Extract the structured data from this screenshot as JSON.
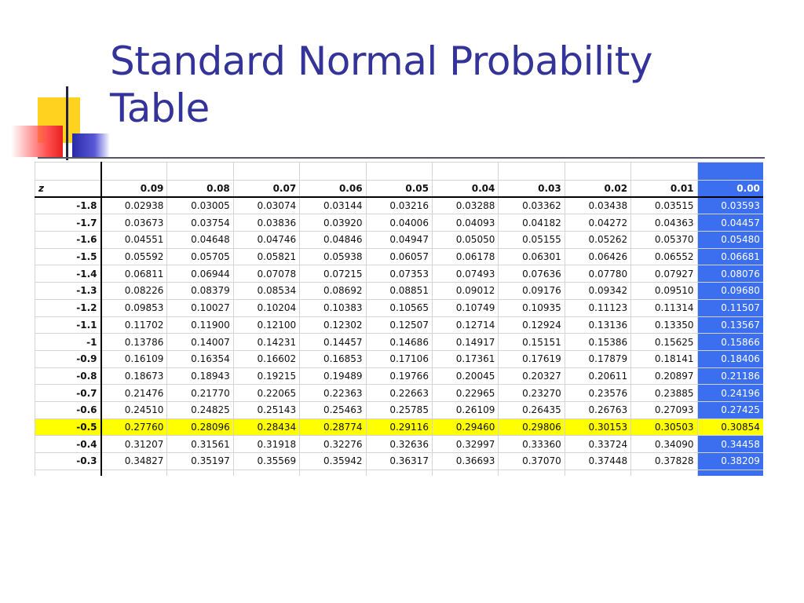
{
  "title_line1": "Standard Normal Probability",
  "title_line2": "Table",
  "table": {
    "z_header": "z",
    "columns": [
      "0.09",
      "0.08",
      "0.07",
      "0.06",
      "0.05",
      "0.04",
      "0.03",
      "0.02",
      "0.01",
      "0.00"
    ],
    "highlighted_column": "0.00",
    "highlighted_row": "-0.5",
    "rows": [
      {
        "z": "-1.8",
        "values": [
          "0.02938",
          "0.03005",
          "0.03074",
          "0.03144",
          "0.03216",
          "0.03288",
          "0.03362",
          "0.03438",
          "0.03515",
          "0.03593"
        ]
      },
      {
        "z": "-1.7",
        "values": [
          "0.03673",
          "0.03754",
          "0.03836",
          "0.03920",
          "0.04006",
          "0.04093",
          "0.04182",
          "0.04272",
          "0.04363",
          "0.04457"
        ]
      },
      {
        "z": "-1.6",
        "values": [
          "0.04551",
          "0.04648",
          "0.04746",
          "0.04846",
          "0.04947",
          "0.05050",
          "0.05155",
          "0.05262",
          "0.05370",
          "0.05480"
        ]
      },
      {
        "z": "-1.5",
        "values": [
          "0.05592",
          "0.05705",
          "0.05821",
          "0.05938",
          "0.06057",
          "0.06178",
          "0.06301",
          "0.06426",
          "0.06552",
          "0.06681"
        ]
      },
      {
        "z": "-1.4",
        "values": [
          "0.06811",
          "0.06944",
          "0.07078",
          "0.07215",
          "0.07353",
          "0.07493",
          "0.07636",
          "0.07780",
          "0.07927",
          "0.08076"
        ]
      },
      {
        "z": "-1.3",
        "values": [
          "0.08226",
          "0.08379",
          "0.08534",
          "0.08692",
          "0.08851",
          "0.09012",
          "0.09176",
          "0.09342",
          "0.09510",
          "0.09680"
        ]
      },
      {
        "z": "-1.2",
        "values": [
          "0.09853",
          "0.10027",
          "0.10204",
          "0.10383",
          "0.10565",
          "0.10749",
          "0.10935",
          "0.11123",
          "0.11314",
          "0.11507"
        ]
      },
      {
        "z": "-1.1",
        "values": [
          "0.11702",
          "0.11900",
          "0.12100",
          "0.12302",
          "0.12507",
          "0.12714",
          "0.12924",
          "0.13136",
          "0.13350",
          "0.13567"
        ]
      },
      {
        "z": "-1",
        "values": [
          "0.13786",
          "0.14007",
          "0.14231",
          "0.14457",
          "0.14686",
          "0.14917",
          "0.15151",
          "0.15386",
          "0.15625",
          "0.15866"
        ]
      },
      {
        "z": "-0.9",
        "values": [
          "0.16109",
          "0.16354",
          "0.16602",
          "0.16853",
          "0.17106",
          "0.17361",
          "0.17619",
          "0.17879",
          "0.18141",
          "0.18406"
        ]
      },
      {
        "z": "-0.8",
        "values": [
          "0.18673",
          "0.18943",
          "0.19215",
          "0.19489",
          "0.19766",
          "0.20045",
          "0.20327",
          "0.20611",
          "0.20897",
          "0.21186"
        ]
      },
      {
        "z": "-0.7",
        "values": [
          "0.21476",
          "0.21770",
          "0.22065",
          "0.22363",
          "0.22663",
          "0.22965",
          "0.23270",
          "0.23576",
          "0.23885",
          "0.24196"
        ]
      },
      {
        "z": "-0.6",
        "values": [
          "0.24510",
          "0.24825",
          "0.25143",
          "0.25463",
          "0.25785",
          "0.26109",
          "0.26435",
          "0.26763",
          "0.27093",
          "0.27425"
        ]
      },
      {
        "z": "-0.5",
        "values": [
          "0.27760",
          "0.28096",
          "0.28434",
          "0.28774",
          "0.29116",
          "0.29460",
          "0.29806",
          "0.30153",
          "0.30503",
          "0.30854"
        ]
      },
      {
        "z": "-0.4",
        "values": [
          "0.31207",
          "0.31561",
          "0.31918",
          "0.32276",
          "0.32636",
          "0.32997",
          "0.33360",
          "0.33724",
          "0.34090",
          "0.34458"
        ]
      },
      {
        "z": "-0.3",
        "values": [
          "0.34827",
          "0.35197",
          "0.35569",
          "0.35942",
          "0.36317",
          "0.36693",
          "0.37070",
          "0.37448",
          "0.37828",
          "0.38209"
        ]
      }
    ]
  },
  "colors": {
    "title": "#333399",
    "highlight_column": "#3b6ff0",
    "highlight_row": "#ffff00"
  }
}
